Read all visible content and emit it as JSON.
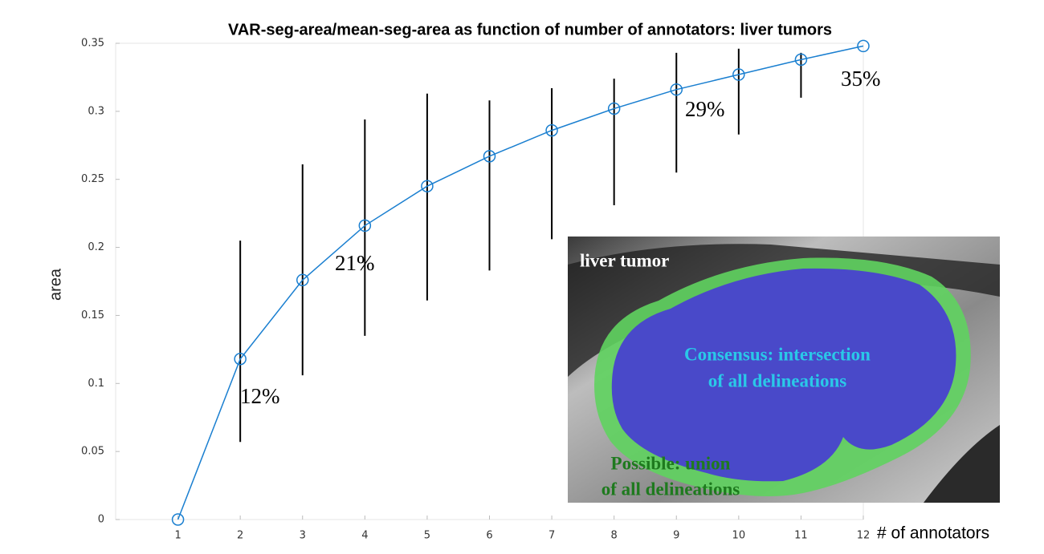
{
  "chart_data": {
    "type": "line",
    "title": "VAR-seg-area/mean-seg-area as function of number of annotators: liver tumors",
    "x_label": "# of annotators",
    "y_label": "area",
    "x": [
      1,
      2,
      3,
      4,
      5,
      6,
      7,
      8,
      9,
      10,
      11,
      12
    ],
    "series": [
      {
        "color": "#1a7fd0",
        "values": [
          0,
          0.118,
          0.176,
          0.216,
          0.245,
          0.267,
          0.286,
          0.302,
          0.316,
          0.327,
          0.338,
          0.348
        ],
        "lower": [
          null,
          0.057,
          0.106,
          0.135,
          0.161,
          0.183,
          0.206,
          0.231,
          0.255,
          0.283,
          0.31,
          null
        ],
        "upper": [
          null,
          0.205,
          0.261,
          0.294,
          0.313,
          0.308,
          0.317,
          0.324,
          0.343,
          0.346,
          0.343,
          null
        ]
      }
    ],
    "error_color": "#000000",
    "xlim": [
      0,
      12
    ],
    "ylim": [
      0,
      0.35
    ],
    "xticks": [
      1,
      2,
      3,
      4,
      5,
      6,
      7,
      8,
      9,
      10,
      11,
      12
    ],
    "yticks": [
      0,
      0.05,
      0.1,
      0.15,
      0.2,
      0.25,
      0.3,
      0.35
    ],
    "annotations": [
      "12%",
      "21%",
      "29%",
      "35%"
    ],
    "inset": {
      "labels": [
        "liver tumor",
        "Consensus: intersection",
        "of all delineations",
        "Possible: union",
        "of all delineations"
      ]
    }
  }
}
